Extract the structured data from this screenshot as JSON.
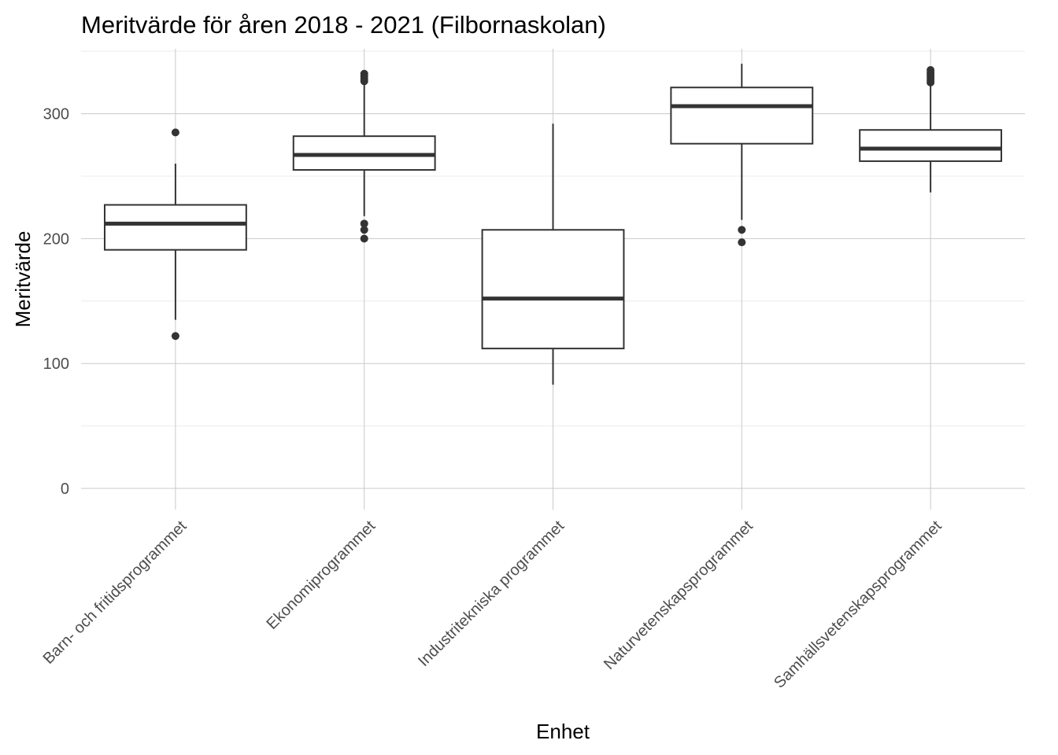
{
  "chart_data": {
    "type": "boxplot",
    "title": "Meritvärde för åren 2018 - 2021 (Filbornaskolan)",
    "xlabel": "Enhet",
    "ylabel": "Meritvärde",
    "ylim": [
      -17,
      352
    ],
    "y_ticks": [
      0,
      100,
      200,
      300
    ],
    "y_minor_ticks": [
      50,
      150,
      250,
      350
    ],
    "grid": true,
    "legend": "none",
    "colors": {
      "box_line": "#333333",
      "grid_major": "#c9c9c9",
      "grid_minor": "#ececec",
      "tick_text": "#4d4d4d"
    },
    "categories": [
      "Barn- och fritidsprogrammet",
      "Ekonomiprogrammet",
      "Industritekniska programmet",
      "Naturvetenskapsprogrammet",
      "Samhällsvetenskapsprogrammet"
    ],
    "boxes": [
      {
        "category": "Barn- och fritidsprogrammet",
        "whisker_low": 135,
        "q1": 191,
        "median": 212,
        "q3": 227,
        "whisker_high": 260,
        "outliers": [
          285,
          122
        ]
      },
      {
        "category": "Ekonomiprogrammet",
        "whisker_low": 218,
        "q1": 255,
        "median": 267,
        "q3": 282,
        "whisker_high": 323,
        "outliers": [
          332,
          330,
          328,
          326,
          212,
          207,
          200
        ]
      },
      {
        "category": "Industritekniska programmet",
        "whisker_low": 83,
        "q1": 112,
        "median": 152,
        "q3": 207,
        "whisker_high": 292,
        "outliers": []
      },
      {
        "category": "Naturvetenskapsprogrammet",
        "whisker_low": 215,
        "q1": 276,
        "median": 306,
        "q3": 321,
        "whisker_high": 340,
        "outliers": [
          207,
          197
        ]
      },
      {
        "category": "Samhällsvetenskapsprogrammet",
        "whisker_low": 237,
        "q1": 262,
        "median": 272,
        "q3": 287,
        "whisker_high": 323,
        "outliers": [
          335,
          333,
          331,
          329,
          327,
          325
        ]
      }
    ]
  }
}
